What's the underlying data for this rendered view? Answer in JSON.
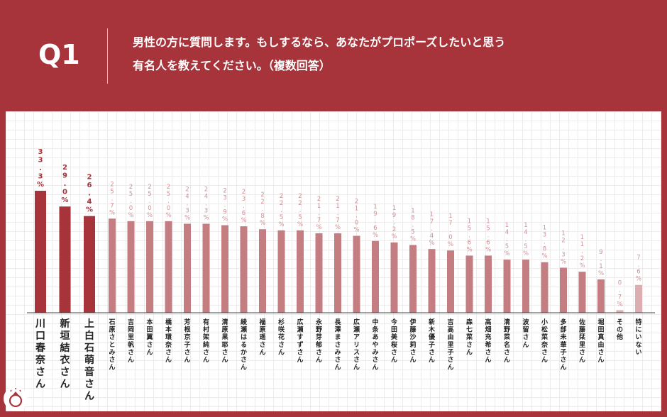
{
  "header": {
    "q_label": "Q1",
    "question_line1": "男性の方に質問します。もしするなら、あなたがプロポーズしたいと思う",
    "question_line2": "有名人を教えてください。（複数回答）"
  },
  "colors": {
    "background": "#a6343a",
    "top_bar": "#a6343a",
    "mid_bar": "#c47e82",
    "light_bar": "#dcaeb1",
    "top_label": "#a6343a",
    "mid_label": "#d09095"
  },
  "icons": {
    "logo": "ring-logo-icon"
  },
  "chart_data": {
    "type": "bar",
    "categories": [
      "川口春奈さん",
      "新垣結衣さん",
      "上白石萌音さん",
      "石原さとみさん",
      "吉岡里帆さん",
      "本田翼さん",
      "橋本環奈さん",
      "芳根京子さん",
      "有村架純さん",
      "清原果耶さん",
      "綾瀬はるかさん",
      "福原遥さん",
      "杉咲花さん",
      "広瀬すずさん",
      "永野芽郁さん",
      "長澤まさみさん",
      "広瀬アリスさん",
      "中条あやみさん",
      "今田美桜さん",
      "伊藤沙莉さん",
      "新木優子さん",
      "吉高由里子さん",
      "森七菜さん",
      "高畑充希さん",
      "清野菜名さん",
      "波留さん",
      "小松菜奈さん",
      "多部未華子さん",
      "佐藤栞里さん",
      "堀田真由さん",
      "その他",
      "特にいない"
    ],
    "values": [
      33.3,
      29.0,
      26.4,
      25.7,
      25.0,
      25.0,
      25.0,
      24.3,
      24.3,
      23.9,
      23.6,
      22.8,
      22.5,
      22.5,
      21.7,
      21.7,
      21.0,
      19.6,
      19.2,
      18.5,
      17.4,
      17.0,
      15.6,
      15.6,
      14.5,
      14.5,
      13.8,
      12.3,
      11.2,
      9.1,
      0.7,
      7.6
    ],
    "labels": [
      "33.3%",
      "29.0%",
      "26.4%",
      "25.7%",
      "25.0%",
      "25.0%",
      "25.0%",
      "24.3%",
      "24.3%",
      "23.9%",
      "23.6%",
      "22.8%",
      "22.5%",
      "22.5%",
      "21.7%",
      "21.7%",
      "21.0%",
      "19.6%",
      "19.2%",
      "18.5%",
      "17.4%",
      "17.0%",
      "15.6%",
      "15.6%",
      "14.5%",
      "14.5%",
      "13.8%",
      "12.3%",
      "11.2%",
      "9.1%",
      "0.7%",
      "7.6%"
    ],
    "unit": "%",
    "highlight_count": 3,
    "light_categories": [
      "その他",
      "特にいない"
    ],
    "ylim": [
      0,
      33.3
    ],
    "grid": true,
    "legend": "none"
  }
}
